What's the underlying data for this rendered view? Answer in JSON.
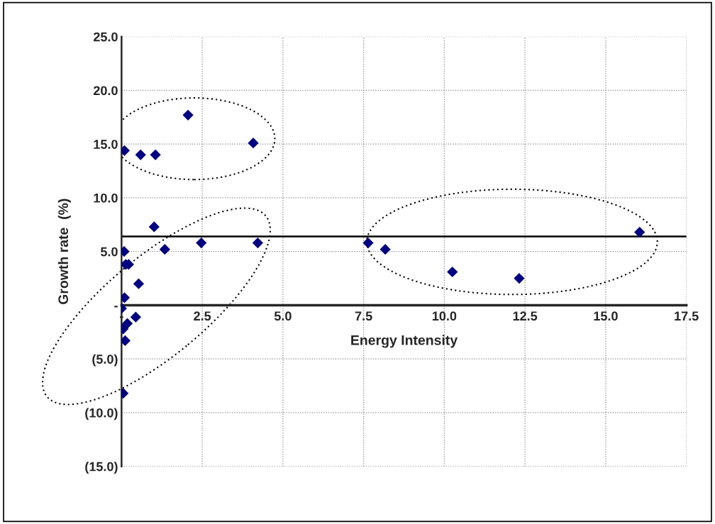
{
  "chart_data": {
    "type": "scatter",
    "xlabel": "Energy Intensity",
    "ylabel": "Growth rate  (%)",
    "x": [
      2.06,
      0.09,
      0.59,
      1.05,
      4.08,
      1.01,
      1.34,
      2.47,
      4.22,
      0.08,
      0.13,
      0.22,
      0.53,
      0.09,
      0.0,
      0.44,
      0.18,
      0.05,
      0.11,
      0.05,
      7.64,
      8.17,
      10.25,
      12.32,
      16.05
    ],
    "values": [
      17.7,
      14.4,
      14.0,
      14.0,
      15.1,
      7.3,
      5.2,
      5.8,
      5.8,
      5.0,
      3.8,
      3.8,
      2.0,
      0.7,
      -0.3,
      -1.1,
      -1.7,
      -2.2,
      -3.3,
      -8.2,
      5.8,
      5.2,
      3.1,
      2.5,
      6.8
    ],
    "color": "#000080",
    "marker": "diamond",
    "xlim": [
      0,
      17.5
    ],
    "ylim": [
      -15,
      25
    ],
    "xticks": [
      {
        "value": 0,
        "label": "-"
      },
      {
        "value": 2.5,
        "label": "2.5"
      },
      {
        "value": 5,
        "label": "5.0"
      },
      {
        "value": 7.5,
        "label": "7.5"
      },
      {
        "value": 10,
        "label": "10.0"
      },
      {
        "value": 12.5,
        "label": "12.5"
      },
      {
        "value": 15,
        "label": "15.0"
      },
      {
        "value": 17.5,
        "label": "17.5"
      }
    ],
    "yticks": [
      {
        "value": -15,
        "label": "(15.0)"
      },
      {
        "value": -10,
        "label": "(10.0)"
      },
      {
        "value": -5,
        "label": "(5.0)"
      },
      {
        "value": 0,
        "label": "-"
      },
      {
        "value": 5,
        "label": "5.0"
      },
      {
        "value": 10,
        "label": "10.0"
      },
      {
        "value": 15,
        "label": "15.0"
      },
      {
        "value": 20,
        "label": "20.0"
      },
      {
        "value": 25,
        "label": "25.0"
      }
    ],
    "ref_lines": [
      {
        "axis": "y",
        "value": 6.4,
        "color": "#000000",
        "line_style": "solid"
      }
    ],
    "grid": true
  }
}
